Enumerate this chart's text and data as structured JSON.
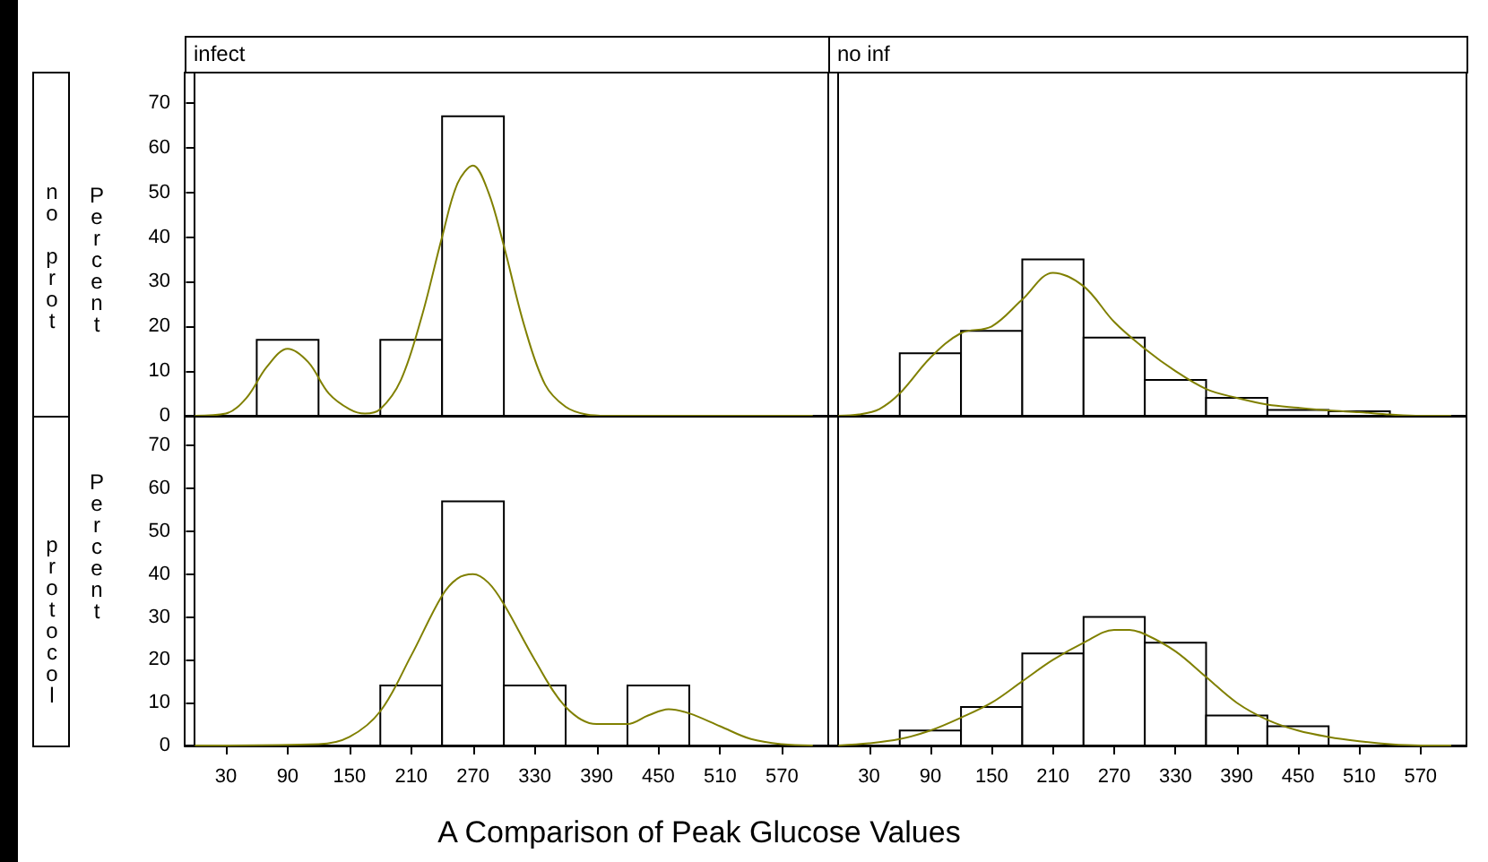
{
  "chart_data": [
    {
      "type": "histogram",
      "title": "infect",
      "ylabel": "Percent",
      "annotations": [
        "no prot"
      ],
      "bins": [
        0,
        60,
        120,
        180,
        240,
        300,
        360,
        420,
        480,
        540,
        600
      ],
      "xlim": [
        -10,
        615
      ],
      "ylim": [
        0,
        77
      ],
      "xticks": [
        30,
        90,
        150,
        210,
        270,
        330,
        390,
        450,
        510,
        570
      ],
      "yticks": [
        0,
        10,
        20,
        30,
        40,
        50,
        60,
        70
      ],
      "tick_labels": "y",
      "series": [
        {
          "color": "#ffffff",
          "values": [
            0,
            17,
            0,
            17,
            67,
            0,
            0,
            0,
            0,
            0
          ]
        },
        {
          "type": "line",
          "color": "#808000",
          "x": [
            0,
            30,
            50,
            70,
            90,
            110,
            130,
            150,
            165,
            180,
            200,
            220,
            240,
            255,
            270,
            285,
            300,
            320,
            340,
            360,
            380,
            400,
            600
          ],
          "values": [
            0,
            0.5,
            4,
            11,
            15,
            12,
            5,
            1.5,
            0.5,
            1.5,
            8,
            22,
            40,
            52,
            56,
            50,
            38,
            20,
            7,
            2,
            0.3,
            0,
            0
          ]
        }
      ]
    },
    {
      "type": "histogram",
      "title": "no inf",
      "bins": [
        0,
        60,
        120,
        180,
        240,
        300,
        360,
        420,
        480,
        540,
        600
      ],
      "xlim": [
        -10,
        615
      ],
      "ylim": [
        0,
        77
      ],
      "xticks": [
        30,
        90,
        150,
        210,
        270,
        330,
        390,
        450,
        510,
        570
      ],
      "yticks": [
        0,
        10,
        20,
        30,
        40,
        50,
        60,
        70
      ],
      "tick_labels": false,
      "series": [
        {
          "color": "#ffffff",
          "values": [
            0,
            14,
            19,
            35,
            17.5,
            8,
            4,
            1.3,
            1,
            0
          ]
        },
        {
          "type": "line",
          "color": "#808000",
          "x": [
            0,
            20,
            40,
            60,
            90,
            120,
            150,
            180,
            210,
            240,
            270,
            300,
            330,
            360,
            390,
            420,
            450,
            480,
            510,
            540,
            570,
            600
          ],
          "values": [
            0,
            0.3,
            1.5,
            5,
            13,
            18.5,
            20,
            26,
            32,
            29,
            21,
            15,
            10,
            6,
            4,
            2.5,
            1.8,
            1.2,
            0.8,
            0.3,
            0,
            0
          ]
        }
      ]
    },
    {
      "type": "histogram",
      "ylabel": "Percent",
      "xlabel": "A Comparison of Peak Glucose Values",
      "annotations": [
        "protocol"
      ],
      "bins": [
        0,
        60,
        120,
        180,
        240,
        300,
        360,
        420,
        480,
        540,
        600
      ],
      "xlim": [
        -10,
        615
      ],
      "ylim": [
        0,
        77
      ],
      "xticks": [
        30,
        90,
        150,
        210,
        270,
        330,
        390,
        450,
        510,
        570
      ],
      "yticks": [
        0,
        10,
        20,
        30,
        40,
        50,
        60,
        70
      ],
      "series": [
        {
          "color": "#ffffff",
          "values": [
            0,
            0,
            0,
            14,
            57,
            14,
            0,
            14,
            0,
            0
          ]
        },
        {
          "type": "line",
          "color": "#808000",
          "x": [
            0,
            120,
            150,
            180,
            210,
            240,
            255,
            270,
            285,
            300,
            330,
            360,
            390,
            420,
            440,
            460,
            480,
            510,
            540,
            570,
            600
          ],
          "values": [
            0,
            0.3,
            2,
            8,
            21,
            35,
            39,
            40,
            38,
            33,
            20,
            9,
            5,
            5,
            7,
            8.5,
            7.5,
            4.5,
            1.5,
            0.3,
            0
          ]
        }
      ]
    },
    {
      "type": "histogram",
      "bins": [
        0,
        60,
        120,
        180,
        240,
        300,
        360,
        420,
        480,
        540,
        600
      ],
      "xlim": [
        -10,
        615
      ],
      "ylim": [
        0,
        77
      ],
      "xticks": [
        30,
        90,
        150,
        210,
        270,
        330,
        390,
        450,
        510,
        570
      ],
      "yticks": [
        0,
        10,
        20,
        30,
        40,
        50,
        60,
        70
      ],
      "tick_labels": "x",
      "series": [
        {
          "color": "#ffffff",
          "values": [
            0,
            3.5,
            9,
            21.5,
            30,
            24,
            7,
            4.5,
            0,
            0
          ]
        },
        {
          "type": "line",
          "color": "#808000",
          "x": [
            0,
            30,
            60,
            90,
            120,
            150,
            180,
            210,
            240,
            270,
            285,
            300,
            330,
            360,
            390,
            420,
            450,
            480,
            510,
            540,
            570,
            600
          ],
          "values": [
            0,
            0.5,
            1.5,
            3.5,
            6.5,
            10,
            15,
            20,
            24,
            27,
            27,
            26,
            22,
            16,
            10,
            6,
            3.5,
            2,
            1,
            0.3,
            0,
            0
          ]
        }
      ]
    }
  ]
}
